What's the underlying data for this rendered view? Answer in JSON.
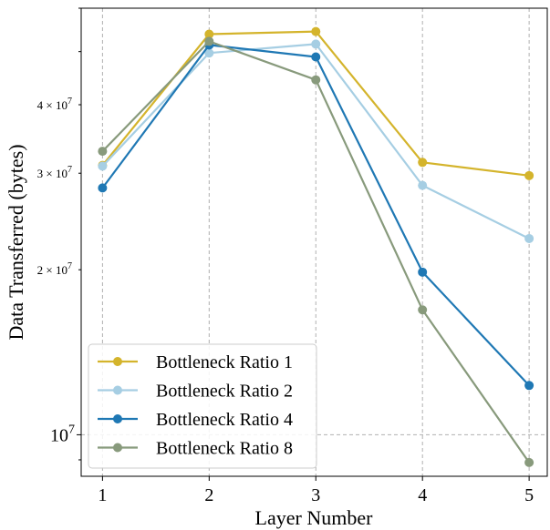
{
  "chart_data": {
    "type": "line",
    "title": "",
    "xlabel": "Layer Number",
    "ylabel": "Data Transferred (bytes)",
    "yscale": "log",
    "x": [
      1,
      2,
      3,
      4,
      5
    ],
    "xlim": [
      0.8,
      5.17
    ],
    "ylim": [
      8400000,
      60000000
    ],
    "grid": true,
    "legend_position": "lower-left",
    "x_tick_labels": [
      "1",
      "2",
      "3",
      "4",
      "5"
    ],
    "y_major_tick": {
      "value": 10000000,
      "label": "10^7"
    },
    "y_minor_ticks": [
      {
        "value": 20000000,
        "label": "2 × 10^7"
      },
      {
        "value": 30000000,
        "label": "3 × 10^7"
      },
      {
        "value": 40000000,
        "label": "4 × 10^7"
      }
    ],
    "series": [
      {
        "name": "Bottleneck Ratio 1",
        "color": "#d4b42c",
        "values": [
          31000000,
          53800000,
          54400000,
          31400000,
          29700000
        ]
      },
      {
        "name": "Bottleneck Ratio 2",
        "color": "#a6cee3",
        "values": [
          30900000,
          49700000,
          51600000,
          28500000,
          22800000
        ]
      },
      {
        "name": "Bottleneck Ratio 4",
        "color": "#1f78b4",
        "values": [
          28200000,
          51400000,
          48900000,
          19800000,
          12300000
        ]
      },
      {
        "name": "Bottleneck Ratio 8",
        "color": "#889a7c",
        "values": [
          32900000,
          52200000,
          44400000,
          16900000,
          8900000
        ]
      }
    ]
  }
}
